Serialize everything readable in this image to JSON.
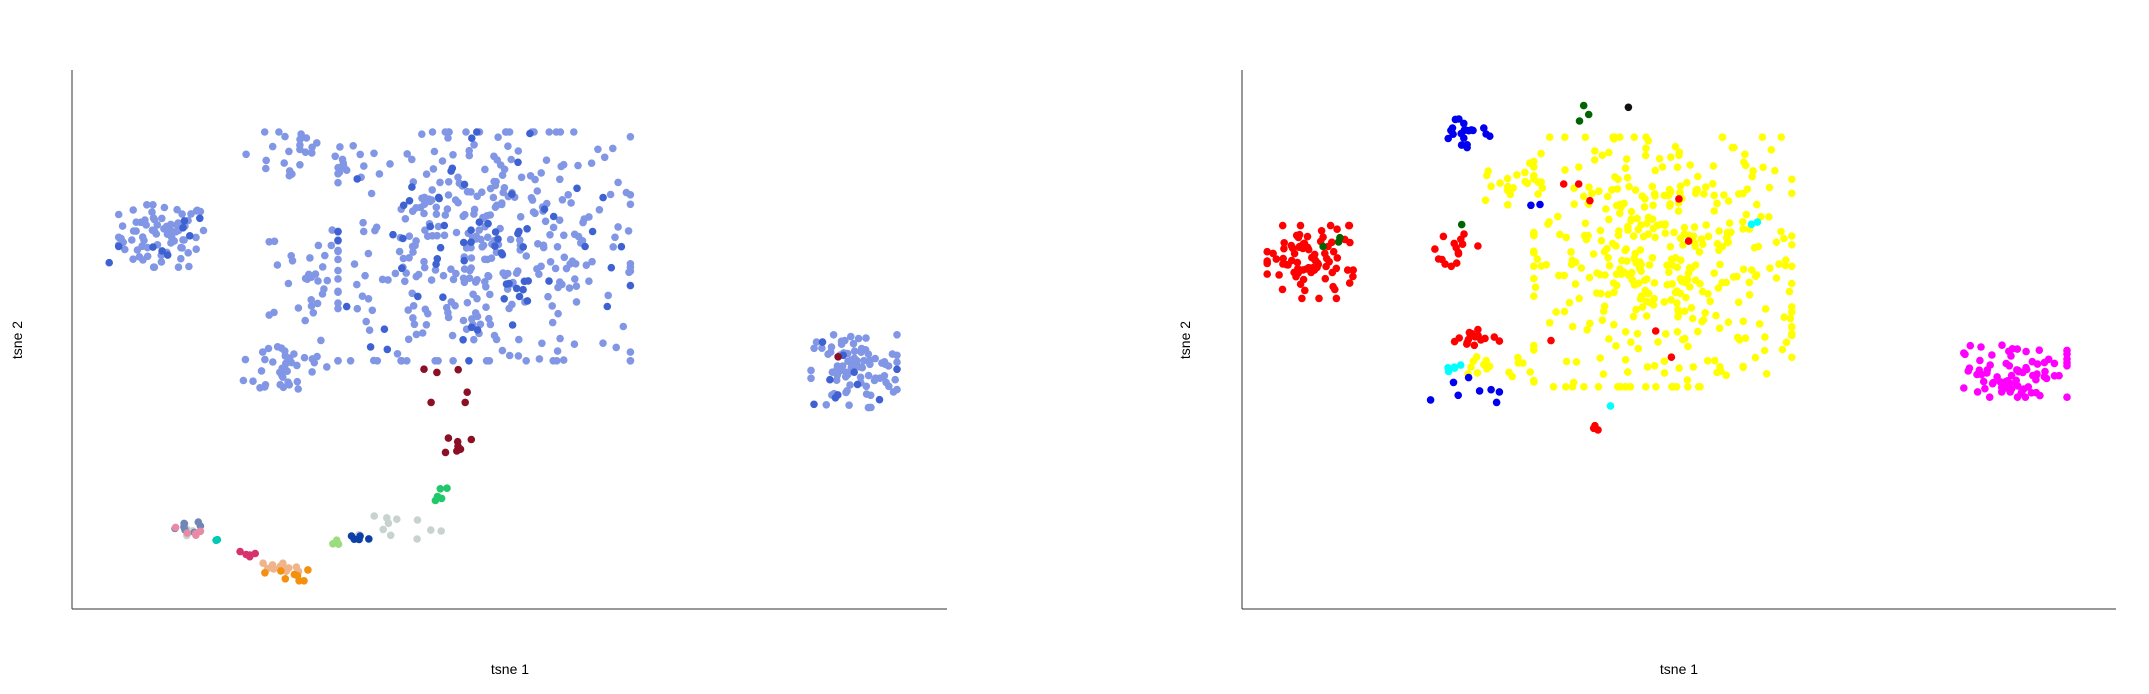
{
  "chart_data": [
    {
      "type": "scatter",
      "xlabel": "tsne 1",
      "ylabel": "tsne 2",
      "grid": false,
      "legend": "none",
      "xlim": [
        0,
        100
      ],
      "ylim": [
        0,
        100
      ],
      "series": [
        {
          "color": "#8196e4",
          "clusters": [
            {
              "cx": 9.5,
              "cy": 70,
              "rx": 5,
              "ry": 6,
              "n": 75
            },
            {
              "cx": 26,
              "cy": 85,
              "rx": 7,
              "ry": 5,
              "n": 30
            },
            {
              "cx": 26,
              "cy": 63,
              "rx": 4,
              "ry": 10,
              "n": 30
            },
            {
              "cx": 24,
              "cy": 45,
              "rx": 5,
              "ry": 6,
              "n": 40
            },
            {
              "cx": 47,
              "cy": 68,
              "rx": 17,
              "ry": 22,
              "n": 360
            },
            {
              "cx": 90,
              "cy": 44,
              "rx": 5,
              "ry": 7,
              "n": 85
            }
          ]
        },
        {
          "color": "#3f62d2",
          "clusters": [
            {
              "cx": 47,
              "cy": 68,
              "rx": 17,
              "ry": 22,
              "n": 70
            },
            {
              "cx": 9.5,
              "cy": 70,
              "rx": 5,
              "ry": 6,
              "n": 8
            },
            {
              "cx": 90,
              "cy": 44,
              "rx": 5,
              "ry": 7,
              "n": 10
            },
            {
              "cx": 3.6,
              "cy": 65,
              "rx": 0.2,
              "ry": 0.2,
              "n": 1
            }
          ]
        },
        {
          "color": "#8b0f25",
          "clusters": [
            {
              "cx": 44,
              "cy": 30,
              "rx": 1.5,
              "ry": 2,
              "n": 8
            },
            {
              "cx": 44,
              "cy": 42,
              "rx": 4,
              "ry": 4,
              "n": 6
            },
            {
              "cx": 88,
              "cy": 47,
              "rx": 0.3,
              "ry": 0.3,
              "n": 1
            }
          ]
        },
        {
          "color": "#c8d2cf",
          "clusters": [
            {
              "cx": 36,
              "cy": 14,
              "rx": 6,
              "ry": 3,
              "n": 12
            },
            {
              "cx": 12,
              "cy": 13,
              "rx": 2,
              "ry": 1,
              "n": 5
            }
          ]
        },
        {
          "color": "#1fc86b",
          "clusters": [
            {
              "cx": 42,
              "cy": 20,
              "rx": 1.2,
              "ry": 2.5,
              "n": 6
            }
          ]
        },
        {
          "color": "#0d3fa8",
          "clusters": [
            {
              "cx": 32,
              "cy": 12,
              "rx": 2.5,
              "ry": 0.8,
              "n": 5
            }
          ]
        },
        {
          "color": "#9bdc7e",
          "clusters": [
            {
              "cx": 29.5,
              "cy": 11,
              "rx": 1,
              "ry": 0.5,
              "n": 3
            }
          ]
        },
        {
          "color": "#6f86b7",
          "clusters": [
            {
              "cx": 12,
              "cy": 14,
              "rx": 2,
              "ry": 1,
              "n": 8
            }
          ]
        },
        {
          "color": "#e88aa6",
          "clusters": [
            {
              "cx": 12,
              "cy": 13,
              "rx": 2,
              "ry": 1,
              "n": 5
            }
          ]
        },
        {
          "color": "#00c9b5",
          "clusters": [
            {
              "cx": 15.8,
              "cy": 11.5,
              "rx": 0.3,
              "ry": 0.3,
              "n": 2
            }
          ]
        },
        {
          "color": "#f0b48a",
          "clusters": [
            {
              "cx": 23,
              "cy": 6,
              "rx": 2.5,
              "ry": 1.3,
              "n": 12
            }
          ]
        },
        {
          "color": "#f4900e",
          "clusters": [
            {
              "cx": 24,
              "cy": 5,
              "rx": 2.5,
              "ry": 1.3,
              "n": 8
            }
          ]
        },
        {
          "color": "#d6336c",
          "clusters": [
            {
              "cx": 20,
              "cy": 8.5,
              "rx": 1.5,
              "ry": 0.8,
              "n": 5
            }
          ]
        }
      ]
    },
    {
      "type": "scatter",
      "xlabel": "tsne 1",
      "ylabel": "tsne 2",
      "grid": false,
      "legend": "none",
      "xlim": [
        0,
        100
      ],
      "ylim": [
        0,
        100
      ],
      "series": [
        {
          "color": "#ffff00",
          "clusters": [
            {
              "cx": 48,
              "cy": 65,
              "rx": 15,
              "ry": 24,
              "n": 420
            },
            {
              "cx": 30,
              "cy": 80,
              "rx": 4,
              "ry": 4,
              "n": 18
            },
            {
              "cx": 28,
              "cy": 45,
              "rx": 5,
              "ry": 3,
              "n": 15
            }
          ]
        },
        {
          "color": "#ff0000",
          "clusters": [
            {
              "cx": 7,
              "cy": 65,
              "rx": 5,
              "ry": 7,
              "n": 85
            },
            {
              "cx": 26,
              "cy": 50,
              "rx": 3,
              "ry": 2,
              "n": 18
            },
            {
              "cx": 24,
              "cy": 68,
              "rx": 2.5,
              "ry": 5,
              "n": 15
            },
            {
              "cx": 43,
              "cy": 60,
              "rx": 8,
              "ry": 20,
              "n": 8
            },
            {
              "cx": 40,
              "cy": 33,
              "rx": 1,
              "ry": 1,
              "n": 3
            }
          ]
        },
        {
          "color": "#ff00ff",
          "clusters": [
            {
              "cx": 89,
              "cy": 44,
              "rx": 6,
              "ry": 5,
              "n": 80
            }
          ]
        },
        {
          "color": "#0000ee",
          "clusters": [
            {
              "cx": 25,
              "cy": 90,
              "rx": 3.5,
              "ry": 3,
              "n": 20
            },
            {
              "cx": 25,
              "cy": 41,
              "rx": 4,
              "ry": 3,
              "n": 8
            },
            {
              "cx": 33,
              "cy": 75,
              "rx": 1.5,
              "ry": 1.5,
              "n": 2
            }
          ]
        },
        {
          "color": "#00ffff",
          "clusters": [
            {
              "cx": 23,
              "cy": 44,
              "rx": 1.5,
              "ry": 2,
              "n": 5
            },
            {
              "cx": 58,
              "cy": 72,
              "rx": 1,
              "ry": 1,
              "n": 2
            },
            {
              "cx": 41,
              "cy": 37,
              "rx": 1,
              "ry": 1,
              "n": 1
            }
          ]
        },
        {
          "color": "#006400",
          "clusters": [
            {
              "cx": 10,
              "cy": 68,
              "rx": 1.5,
              "ry": 2,
              "n": 3
            },
            {
              "cx": 39,
              "cy": 94,
              "rx": 1.5,
              "ry": 2,
              "n": 3
            },
            {
              "cx": 24.5,
              "cy": 72,
              "rx": 0.3,
              "ry": 0.3,
              "n": 1
            }
          ]
        },
        {
          "color": "#111111",
          "clusters": [
            {
              "cx": 44,
              "cy": 95,
              "rx": 0.3,
              "ry": 0.3,
              "n": 1
            }
          ]
        }
      ]
    }
  ]
}
